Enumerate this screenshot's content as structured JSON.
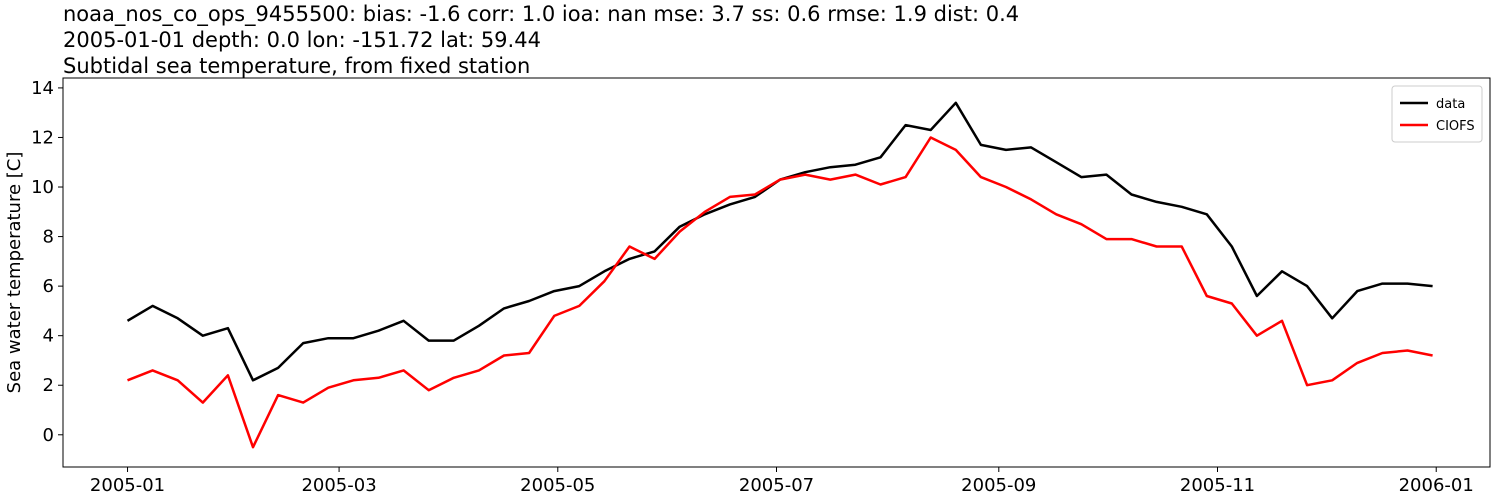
{
  "chart_data": {
    "type": "line",
    "title_lines": [
      "noaa_nos_co_ops_9455500: bias: -1.6  corr: 1.0  ioa: nan  mse: 3.7  ss: 0.6  rmse: 1.9  dist: 0.4",
      "2005-01-01 depth: 0.0 lon: -151.72 lat: 59.44",
      "Subtidal sea temperature, from fixed station"
    ],
    "y_label": "Sea water temperature [C]",
    "x": [
      "2005-01-01",
      "2005-01-08",
      "2005-01-15",
      "2005-01-22",
      "2005-01-29",
      "2005-02-05",
      "2005-02-12",
      "2005-02-19",
      "2005-02-26",
      "2005-03-05",
      "2005-03-12",
      "2005-03-19",
      "2005-03-26",
      "2005-04-02",
      "2005-04-09",
      "2005-04-16",
      "2005-04-23",
      "2005-04-30",
      "2005-05-07",
      "2005-05-14",
      "2005-05-21",
      "2005-05-28",
      "2005-06-04",
      "2005-06-11",
      "2005-06-18",
      "2005-06-25",
      "2005-07-02",
      "2005-07-09",
      "2005-07-16",
      "2005-07-23",
      "2005-07-30",
      "2005-08-06",
      "2005-08-13",
      "2005-08-20",
      "2005-08-27",
      "2005-09-03",
      "2005-09-10",
      "2005-09-17",
      "2005-09-24",
      "2005-10-01",
      "2005-10-08",
      "2005-10-15",
      "2005-10-22",
      "2005-10-29",
      "2005-11-05",
      "2005-11-12",
      "2005-11-19",
      "2005-11-26",
      "2005-12-03",
      "2005-12-10",
      "2005-12-17",
      "2005-12-24",
      "2005-12-31"
    ],
    "series": [
      {
        "name": "data",
        "color": "#000000",
        "values": [
          4.6,
          5.2,
          4.7,
          4.0,
          4.3,
          2.2,
          2.7,
          3.7,
          3.9,
          3.9,
          4.2,
          4.6,
          3.8,
          3.8,
          4.4,
          5.1,
          5.4,
          5.8,
          6.0,
          6.6,
          7.1,
          7.4,
          8.4,
          8.9,
          9.3,
          9.6,
          10.3,
          10.6,
          10.8,
          10.9,
          11.2,
          12.5,
          12.3,
          13.4,
          11.7,
          11.5,
          11.6,
          11.0,
          10.4,
          10.5,
          9.7,
          9.4,
          9.2,
          8.9,
          7.6,
          5.6,
          6.6,
          6.0,
          4.7,
          5.8,
          6.1,
          6.1,
          6.0
        ]
      },
      {
        "name": "CIOFS",
        "color": "#ff0000",
        "values": [
          2.2,
          2.6,
          2.2,
          1.3,
          2.4,
          -0.5,
          1.6,
          1.3,
          1.9,
          2.2,
          2.3,
          2.6,
          1.8,
          2.3,
          2.6,
          3.2,
          3.3,
          4.8,
          5.2,
          6.2,
          7.6,
          7.1,
          8.2,
          9.0,
          9.6,
          9.7,
          10.3,
          10.5,
          10.3,
          10.5,
          10.1,
          10.4,
          12.0,
          11.5,
          10.4,
          10.0,
          9.5,
          8.9,
          8.5,
          7.9,
          7.9,
          7.6,
          7.6,
          5.6,
          5.3,
          4.0,
          4.6,
          2.0,
          2.2,
          2.9,
          3.3,
          3.4,
          3.2
        ]
      }
    ],
    "xlim": [
      "2004-12-14",
      "2006-01-16"
    ],
    "xticks": [
      "2005-01",
      "2005-03",
      "2005-05",
      "2005-07",
      "2005-09",
      "2005-11",
      "2006-01"
    ],
    "ylim": [
      -1.3,
      14.4
    ],
    "yticks": [
      0,
      2,
      4,
      6,
      8,
      10,
      12,
      14
    ],
    "grid": false,
    "legend": "upper right"
  }
}
